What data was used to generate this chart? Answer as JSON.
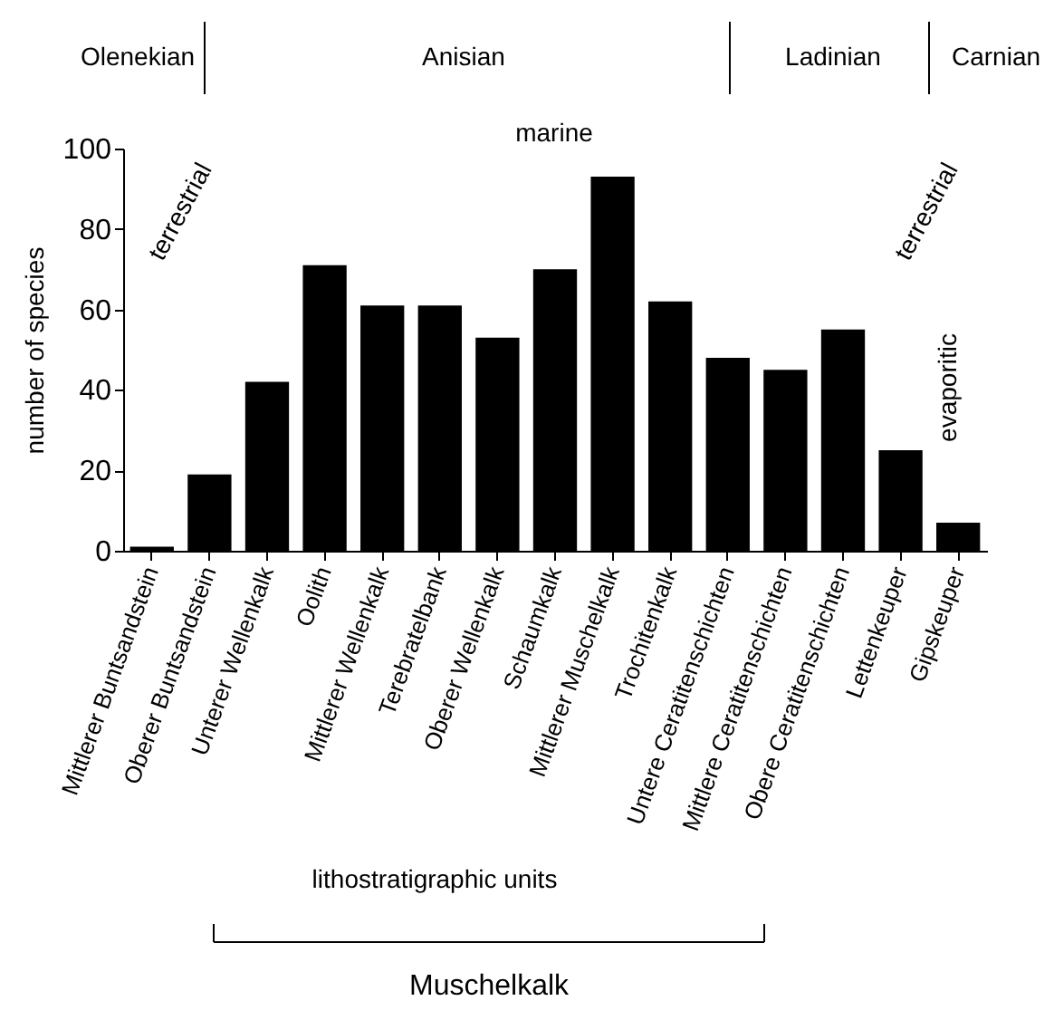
{
  "chart_data": {
    "type": "bar",
    "ylabel": "number of species",
    "categories": [
      "Mittlerer Buntsandstein",
      "Oberer Buntsandstein",
      "Unterer Wellenkalk",
      "Oolith",
      "Mittlerer Wellenkalk",
      "Terebratelbank",
      "Oberer Wellenkalk",
      "Schaumkalk",
      "Mittlerer Muschelkalk",
      "Trochitenkalk",
      "Untere Ceratitenschichten",
      "Mittlere Ceratitenschichten",
      "Obere Ceratitenschichten",
      "Lettenkeuper",
      "Gipskeuper"
    ],
    "values": [
      1,
      19,
      42,
      71,
      61,
      61,
      53,
      70,
      93,
      62,
      48,
      45,
      55,
      25,
      7
    ],
    "color": "#000000",
    "ylim": [
      0,
      100
    ],
    "yticks": [
      0,
      20,
      40,
      60,
      80,
      100
    ],
    "grid": false,
    "annotations": [
      "Olenekian",
      "Anisian",
      "Ladinian",
      "Carnian",
      "marine",
      "terrestrial",
      "terrestrial",
      "evaporitic",
      "lithostratigraphic units",
      "Muschelkalk"
    ]
  }
}
